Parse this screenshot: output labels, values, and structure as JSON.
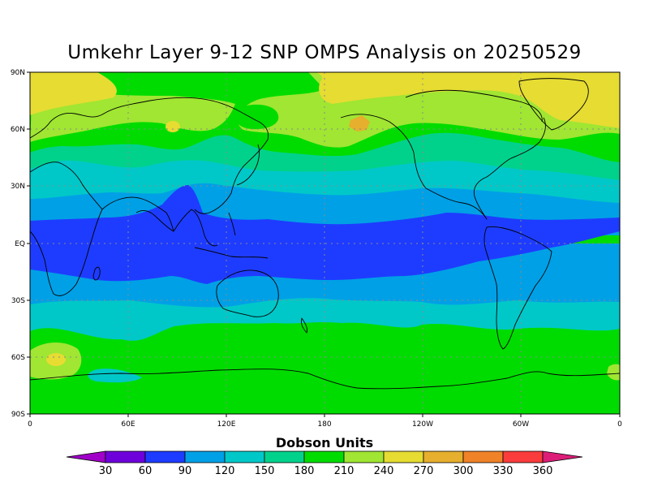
{
  "title": "Umkehr Layer 9-12 SNP OMPS Analysis on 20250529",
  "colorbar": {
    "title": "Dobson Units",
    "labels": [
      "30",
      "60",
      "90",
      "120",
      "150",
      "180",
      "210",
      "240",
      "270",
      "300",
      "330",
      "360"
    ],
    "colors": [
      "#a000c8",
      "#6e00dc",
      "#1e3cff",
      "#00a0e6",
      "#00c8c8",
      "#00d28c",
      "#00dc00",
      "#a0e632",
      "#e6dc32",
      "#e6af2d",
      "#f08228",
      "#fa3c3c",
      "#dc1e78"
    ]
  },
  "axes": {
    "lat_labels": [
      "90N",
      "60N",
      "30N",
      "EQ",
      "30S",
      "60S",
      "90S"
    ],
    "lon_labels": [
      "0",
      "60E",
      "120E",
      "180",
      "120W",
      "60W",
      "0"
    ]
  },
  "chart_data": {
    "type": "heatmap",
    "title": "Umkehr Layer 9-12 SNP OMPS Analysis on 20250529",
    "xlabel": "",
    "ylabel": "",
    "x_ticks": [
      "0",
      "60E",
      "120E",
      "180",
      "120W",
      "60W",
      "0"
    ],
    "y_ticks": [
      "90N",
      "60N",
      "30N",
      "EQ",
      "30S",
      "60S",
      "90S"
    ],
    "xlim": [
      0,
      360
    ],
    "ylim": [
      -90,
      90
    ],
    "value_unit": "Dobson Units",
    "levels": [
      30,
      60,
      90,
      120,
      150,
      180,
      210,
      240,
      270,
      300,
      330,
      360
    ],
    "grid": true,
    "zonal_bands": [
      {
        "lat_from": 90,
        "lat_to": 62,
        "value_range": [
          240,
          270
        ]
      },
      {
        "lat_from": 62,
        "lat_to": 45,
        "value_range": [
          210,
          240
        ]
      },
      {
        "lat_from": 45,
        "lat_to": 35,
        "value_range": [
          180,
          210
        ]
      },
      {
        "lat_from": 35,
        "lat_to": 25,
        "value_range": [
          150,
          180
        ]
      },
      {
        "lat_from": 25,
        "lat_to": 12,
        "value_range": [
          120,
          150
        ]
      },
      {
        "lat_from": 12,
        "lat_to": -20,
        "value_range": [
          90,
          120
        ]
      },
      {
        "lat_from": -20,
        "lat_to": -33,
        "value_range": [
          120,
          150
        ]
      },
      {
        "lat_from": -33,
        "lat_to": -45,
        "value_range": [
          150,
          180
        ]
      },
      {
        "lat_from": -45,
        "lat_to": -90,
        "value_range": [
          180,
          210
        ]
      }
    ],
    "features": [
      {
        "lon": 195,
        "lat": 64,
        "value_range": [
          270,
          300
        ]
      },
      {
        "lon": 75,
        "lat": 61,
        "value_range": [
          240,
          270
        ]
      },
      {
        "lon": 15,
        "lat": -62,
        "value_range": [
          240,
          270
        ]
      }
    ]
  }
}
